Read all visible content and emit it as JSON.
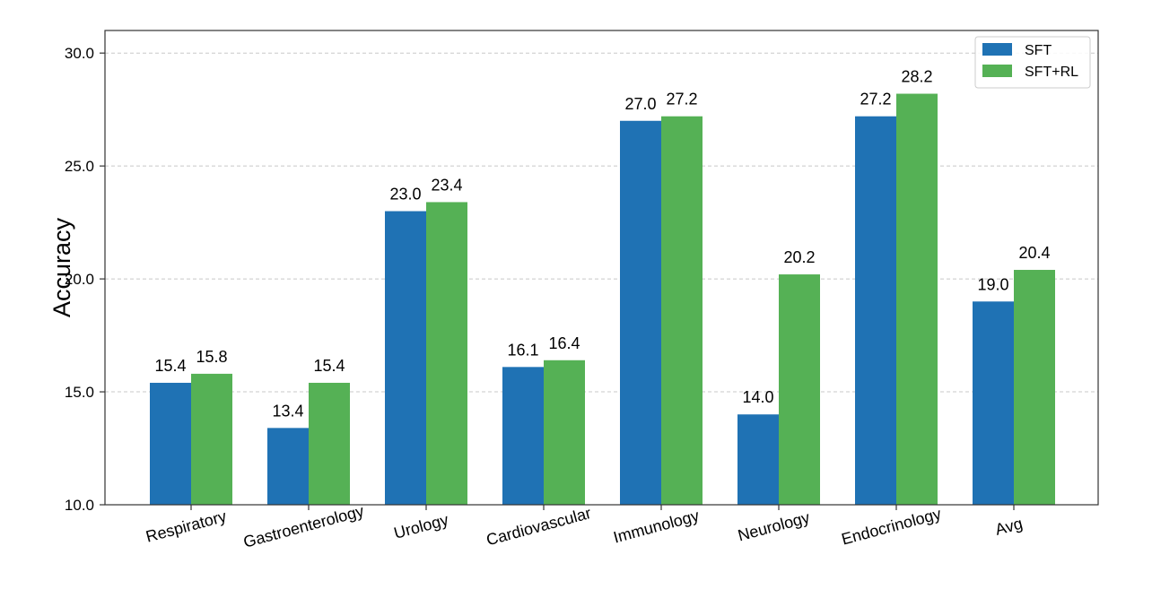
{
  "chart_data": {
    "type": "bar",
    "title": "",
    "xlabel": "",
    "ylabel": "Accuracy",
    "ylim": [
      10,
      31
    ],
    "yticks": [
      10,
      15,
      20,
      25,
      30
    ],
    "grid": true,
    "legend_position": "top-right",
    "categories": [
      "Respiratory",
      "Gastroenterology",
      "Urology",
      "Cardiovascular",
      "Immunology",
      "Neurology",
      "Endocrinology",
      "Avg"
    ],
    "series": [
      {
        "name": "SFT",
        "color": "#1f72b4",
        "values": [
          15.4,
          13.4,
          23.0,
          16.1,
          27.0,
          14.0,
          27.2,
          19.0
        ]
      },
      {
        "name": "SFT+RL",
        "color": "#55b155",
        "values": [
          15.8,
          15.4,
          23.4,
          16.4,
          27.2,
          20.2,
          28.2,
          20.4
        ]
      }
    ]
  }
}
